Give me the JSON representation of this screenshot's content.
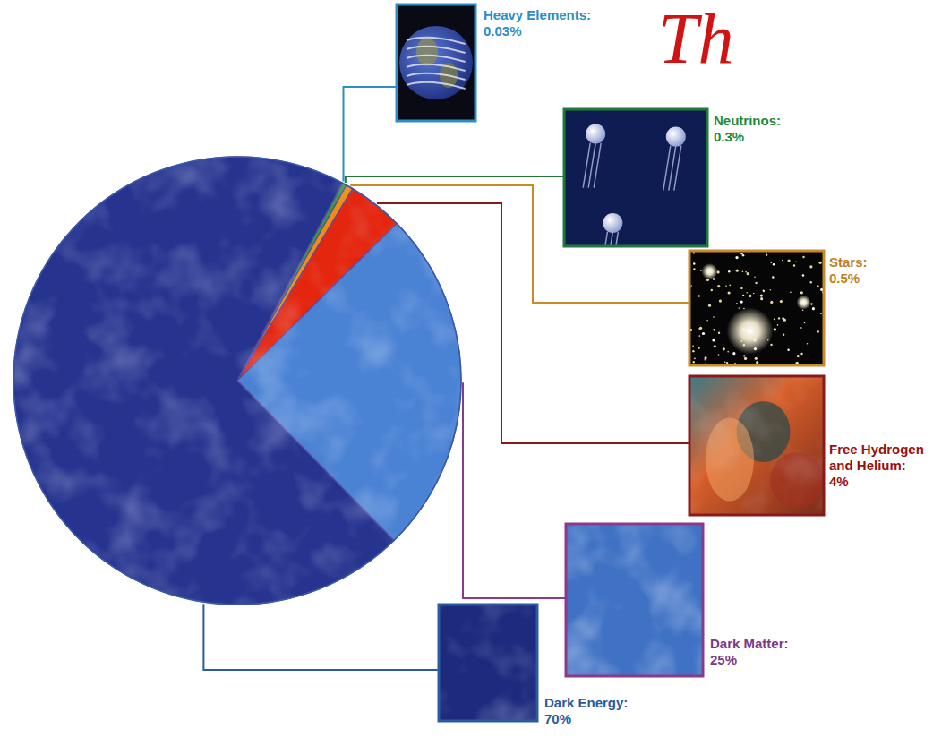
{
  "chart_data": {
    "type": "pie",
    "title": "Th",
    "categories": [
      "Heavy Elements:",
      "Neutrinos:",
      "Stars:",
      "Free Hydrogen and Helium:",
      "Dark Matter:",
      "Dark Energy:"
    ],
    "values": [
      0.03,
      0.3,
      0.5,
      4,
      25,
      70
    ],
    "value_labels": [
      "0.03%",
      "0.3%",
      "0.5%",
      "4%",
      "25%",
      "70%"
    ],
    "colors": [
      "#44b4e6",
      "#2e9e4a",
      "#f08c10",
      "#e4260e",
      "#4a82d4",
      "#26348f"
    ],
    "data_labels": true
  }
}
